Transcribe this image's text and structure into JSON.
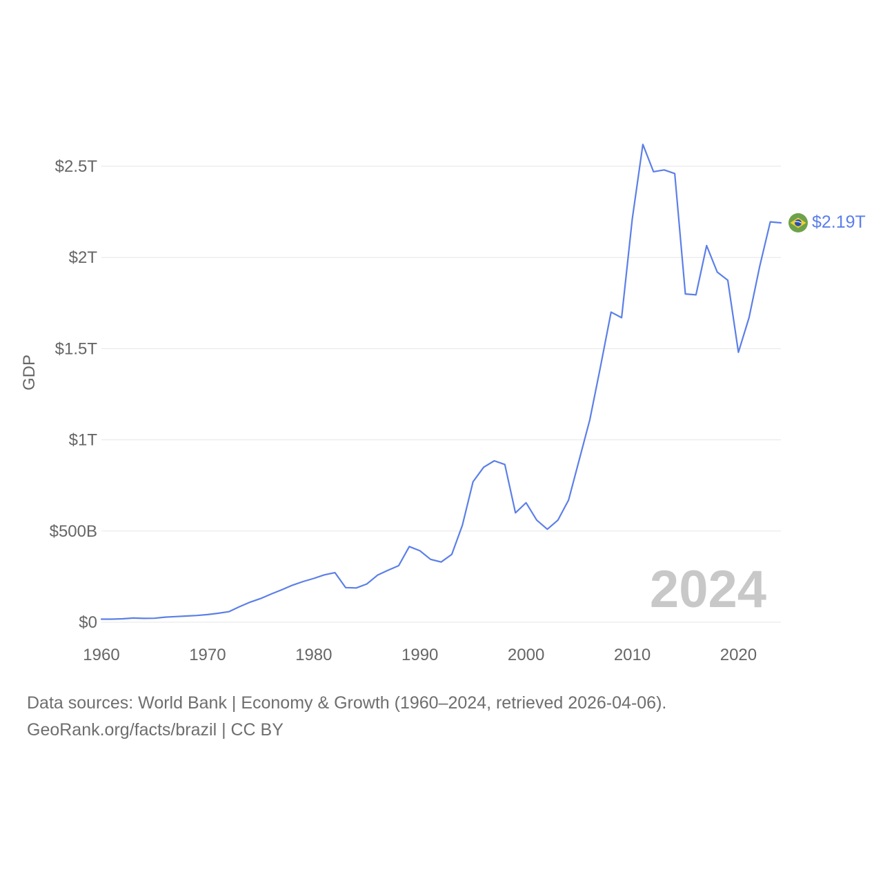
{
  "chart_data": {
    "type": "line",
    "ylabel": "GDP",
    "xlabel": "",
    "xlim": [
      1960,
      2024
    ],
    "ylim": [
      0,
      2.7
    ],
    "y_unit": "trillion USD",
    "x_ticks": [
      1960,
      1970,
      1980,
      1990,
      2000,
      2010,
      2020
    ],
    "y_ticks": [
      {
        "value": 0,
        "label": "$0"
      },
      {
        "value": 0.5,
        "label": "$500B"
      },
      {
        "value": 1.0,
        "label": "$1T"
      },
      {
        "value": 1.5,
        "label": "$1.5T"
      },
      {
        "value": 2.0,
        "label": "$2T"
      },
      {
        "value": 2.5,
        "label": "$2.5T"
      }
    ],
    "grid": true,
    "current_year_label": "2024",
    "end_label": "$2.19T",
    "series": [
      {
        "name": "Brazil",
        "color": "#5b7fe8",
        "x": [
          1960,
          1961,
          1962,
          1963,
          1964,
          1965,
          1966,
          1967,
          1968,
          1969,
          1970,
          1971,
          1972,
          1973,
          1974,
          1975,
          1976,
          1977,
          1978,
          1979,
          1980,
          1981,
          1982,
          1983,
          1984,
          1985,
          1986,
          1987,
          1988,
          1989,
          1990,
          1991,
          1992,
          1993,
          1994,
          1995,
          1996,
          1997,
          1998,
          1999,
          2000,
          2001,
          2002,
          2003,
          2004,
          2005,
          2006,
          2007,
          2008,
          2009,
          2010,
          2011,
          2012,
          2013,
          2014,
          2015,
          2016,
          2017,
          2018,
          2019,
          2020,
          2021,
          2022,
          2023,
          2024
        ],
        "values": [
          0.017,
          0.017,
          0.019,
          0.023,
          0.021,
          0.022,
          0.028,
          0.031,
          0.034,
          0.037,
          0.042,
          0.049,
          0.058,
          0.085,
          0.11,
          0.13,
          0.155,
          0.178,
          0.203,
          0.223,
          0.24,
          0.26,
          0.272,
          0.19,
          0.188,
          0.21,
          0.258,
          0.285,
          0.31,
          0.415,
          0.392,
          0.345,
          0.33,
          0.372,
          0.532,
          0.77,
          0.85,
          0.885,
          0.865,
          0.6,
          0.655,
          0.56,
          0.51,
          0.56,
          0.67,
          0.89,
          1.11,
          1.4,
          1.7,
          1.67,
          2.21,
          2.62,
          2.47,
          2.48,
          2.46,
          1.8,
          1.795,
          2.065,
          1.92,
          1.875,
          1.48,
          1.67,
          1.95,
          2.195,
          2.19
        ]
      }
    ]
  },
  "flag": {
    "name": "brazil-flag",
    "colors": {
      "green": "#6da24a",
      "yellow": "#f2d035",
      "blue": "#2b4fa8"
    }
  },
  "caption": {
    "line1": "Data sources: World Bank | Economy & Growth (1960–2024, retrieved 2026-04-06).",
    "line2": "GeoRank.org/facts/brazil | CC BY"
  }
}
